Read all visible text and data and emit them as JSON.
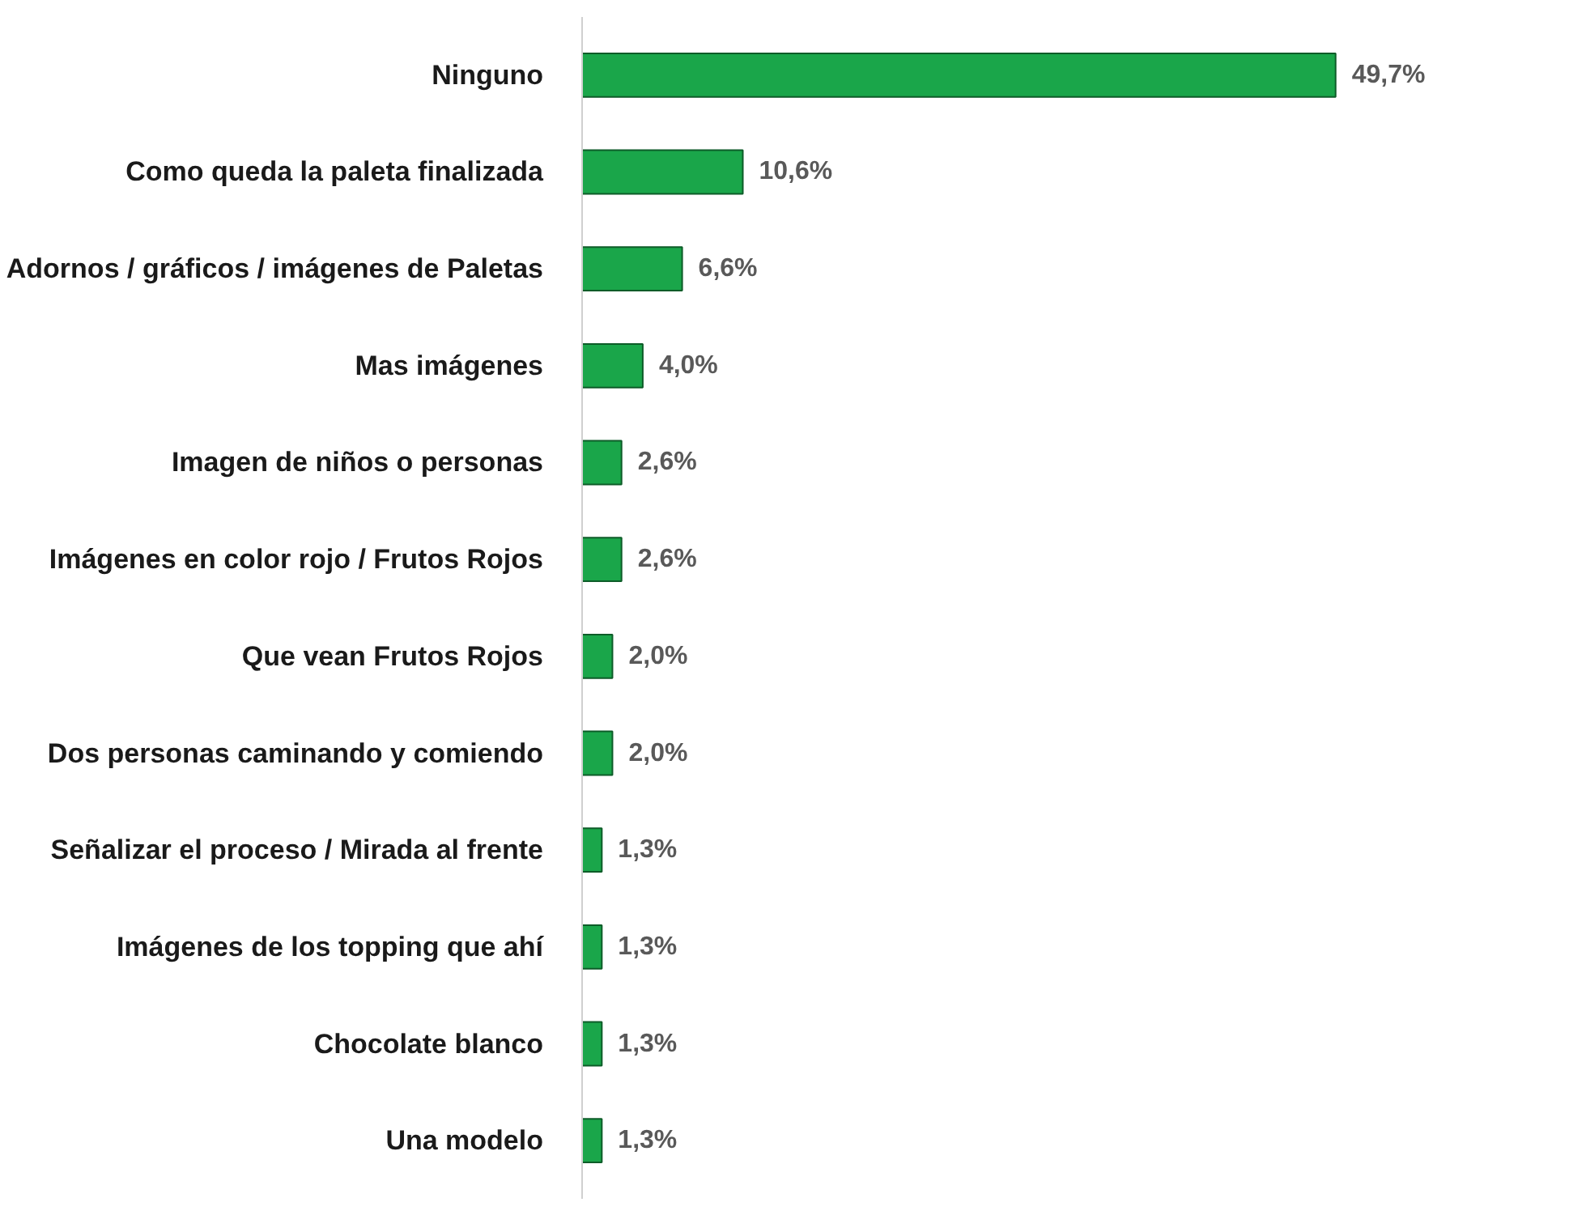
{
  "chart_data": {
    "type": "bar",
    "orientation": "horizontal",
    "categories": [
      "Ninguno",
      "Como queda la paleta finalizada",
      "Adornos / gráficos / imágenes de Paletas",
      "Mas imágenes",
      "Imagen de niños o personas",
      "Imágenes en color rojo / Frutos Rojos",
      "Que vean Frutos Rojos",
      "Dos personas caminando y comiendo",
      "Señalizar el proceso / Mirada al frente",
      "Imágenes de los topping que ahí",
      "Chocolate blanco",
      "Una modelo"
    ],
    "values": [
      49.7,
      10.6,
      6.6,
      4.0,
      2.6,
      2.6,
      2.0,
      2.0,
      1.3,
      1.3,
      1.3,
      1.3
    ],
    "value_labels": [
      "49,7%",
      "10,6%",
      "6,6%",
      "4,0%",
      "2,6%",
      "2,6%",
      "2,0%",
      "2,0%",
      "1,3%",
      "1,3%",
      "1,3%",
      "1,3%"
    ],
    "color": "#1aa64a",
    "tick_labels": "y"
  }
}
